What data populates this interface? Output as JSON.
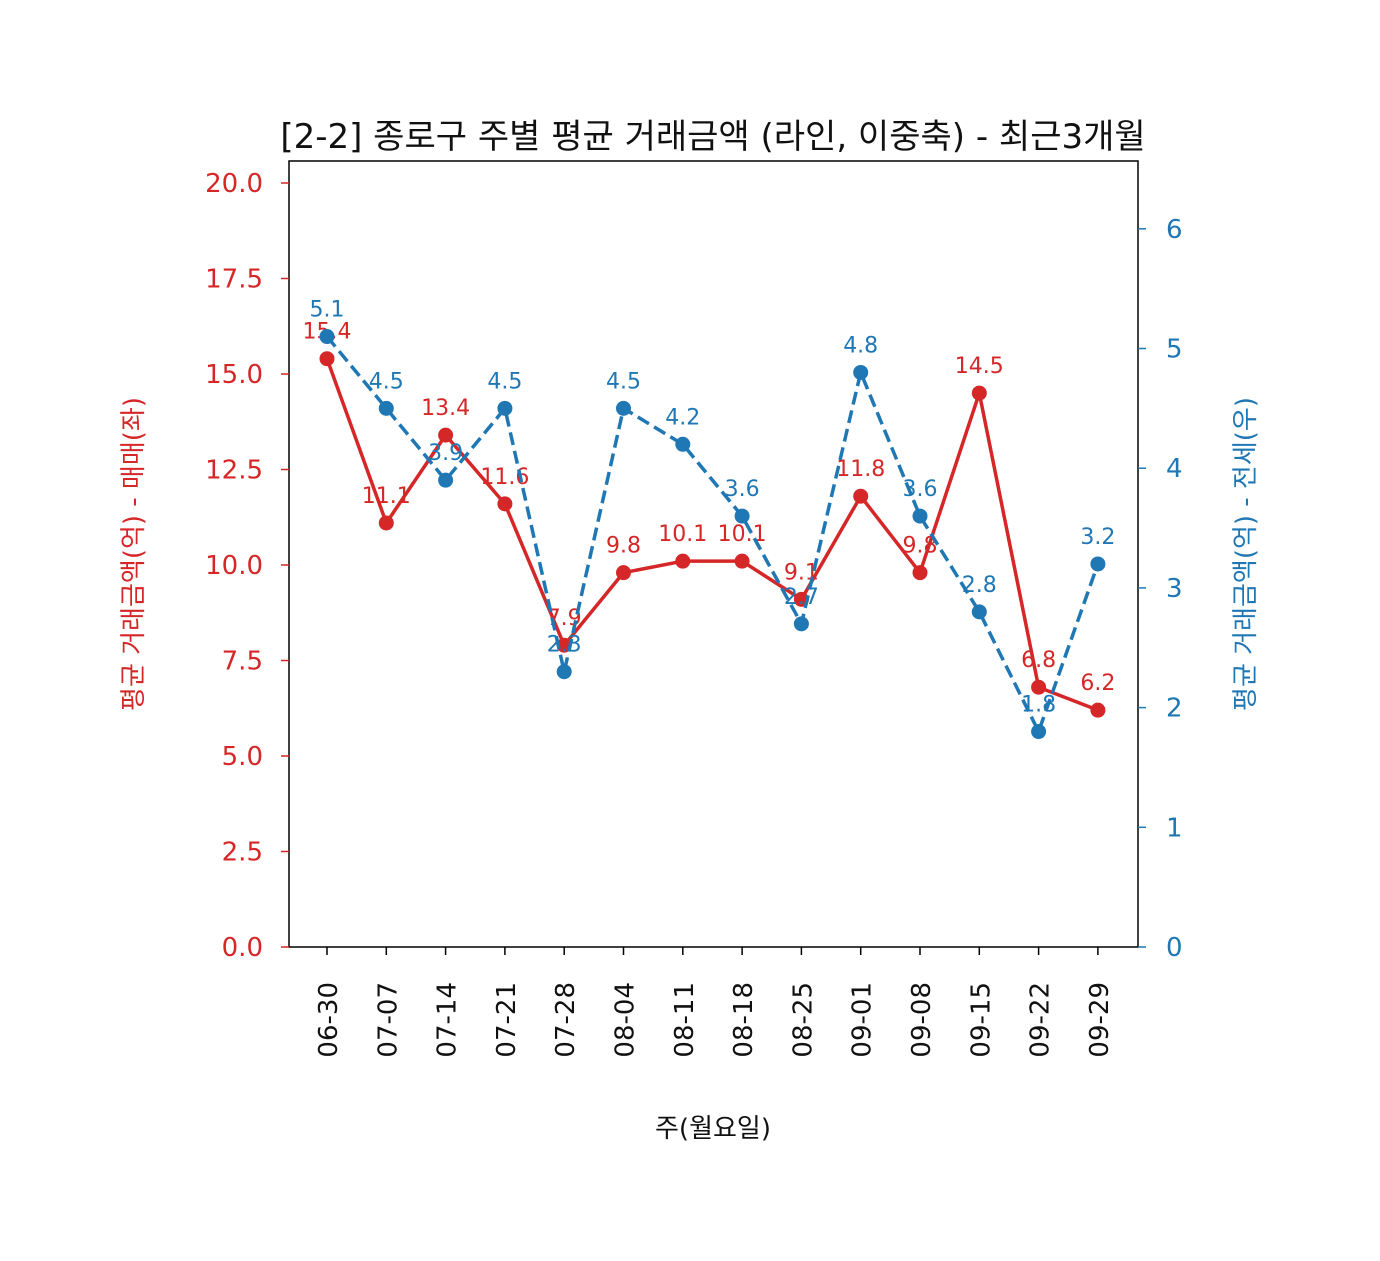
{
  "chart_data": {
    "type": "line",
    "title": "[2-2] 종로구 주별 평균 거래금액 (라인, 이중축) - 최근3개월",
    "xlabel": "주(월요일)",
    "ylabel_left": "평균 거래금액(억) - 매매(좌)",
    "ylabel_right": "평균 거래금액(억) - 전세(우)",
    "categories": [
      "06-30",
      "07-07",
      "07-14",
      "07-21",
      "07-28",
      "08-04",
      "08-11",
      "08-18",
      "08-25",
      "09-01",
      "09-08",
      "09-15",
      "09-22",
      "09-29"
    ],
    "ylim_left": [
      0,
      20
    ],
    "ylim_right": [
      0,
      6.6
    ],
    "yticks_left": [
      "0.0",
      "2.5",
      "5.0",
      "7.5",
      "10.0",
      "12.5",
      "15.0",
      "17.5",
      "20.0"
    ],
    "yticks_right": [
      "0",
      "1",
      "2",
      "3",
      "4",
      "5",
      "6"
    ],
    "grid": false,
    "series": [
      {
        "axis": "left",
        "color": "#d62728",
        "style": "solid",
        "values": [
          15.4,
          11.1,
          13.4,
          11.6,
          7.9,
          9.8,
          10.1,
          10.1,
          9.1,
          11.8,
          9.8,
          14.5,
          6.8,
          6.2
        ],
        "labels": [
          "15.4",
          "11.1",
          "13.4",
          "11.6",
          "7.9",
          "9.8",
          "10.1",
          "10.1",
          "9.1",
          "11.8",
          "9.8",
          "14.5",
          "6.8",
          "6.2"
        ]
      },
      {
        "axis": "right",
        "color": "#1f77b4",
        "style": "dashed",
        "values": [
          5.1,
          4.5,
          3.9,
          4.5,
          2.3,
          4.5,
          4.2,
          3.6,
          2.7,
          4.8,
          3.6,
          2.8,
          1.8,
          3.2
        ],
        "labels": [
          "5.1",
          "4.5",
          "3.9",
          "4.5",
          "2.3",
          "4.5",
          "4.2",
          "3.6",
          "2.7",
          "4.8",
          "3.6",
          "2.8",
          "1.8",
          "3.2"
        ]
      }
    ]
  }
}
